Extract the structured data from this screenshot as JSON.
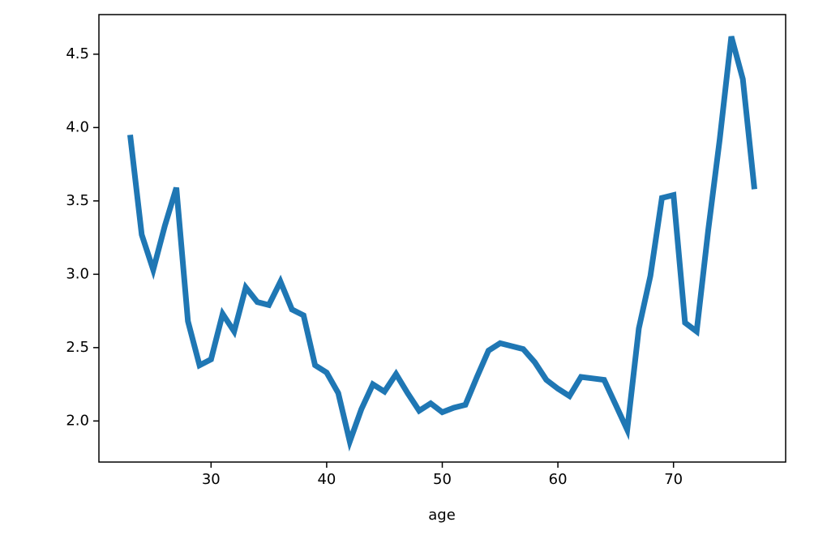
{
  "chart_data": {
    "type": "line",
    "xlabel": "age",
    "color": "#1f77b4",
    "x": [
      23,
      24,
      25,
      26,
      27,
      28,
      29,
      30,
      31,
      32,
      33,
      34,
      35,
      36,
      37,
      38,
      39,
      40,
      41,
      42,
      43,
      44,
      45,
      46,
      47,
      48,
      49,
      50,
      51,
      52,
      53,
      54,
      55,
      56,
      57,
      58,
      59,
      60,
      61,
      62,
      63,
      64,
      65,
      66,
      67,
      68,
      69,
      70,
      71,
      72,
      73,
      74,
      75,
      76,
      77
    ],
    "values": [
      3.95,
      3.27,
      3.03,
      3.33,
      3.59,
      2.68,
      2.38,
      2.42,
      2.73,
      2.61,
      2.91,
      2.81,
      2.79,
      2.95,
      2.76,
      2.72,
      2.38,
      2.33,
      2.19,
      1.86,
      2.08,
      2.25,
      2.2,
      2.32,
      2.19,
      2.07,
      2.12,
      2.06,
      2.09,
      2.11,
      2.3,
      2.48,
      2.53,
      2.51,
      2.49,
      2.4,
      2.28,
      2.22,
      2.17,
      2.3,
      2.29,
      2.28,
      2.11,
      1.94,
      2.63,
      2.99,
      3.52,
      3.54,
      2.67,
      2.61,
      3.3,
      3.92,
      4.62,
      4.33,
      3.58
    ],
    "xlim": [
      20.3,
      79.7
    ],
    "ylim": [
      1.72,
      4.77
    ],
    "xticks": [
      30,
      40,
      50,
      60,
      70
    ],
    "yticks": [
      {
        "value": 2,
        "label": "2.0"
      },
      2.5,
      {
        "value": 3,
        "label": "3.0"
      },
      3.5,
      {
        "value": 4,
        "label": "4.0"
      },
      4.5
    ]
  }
}
